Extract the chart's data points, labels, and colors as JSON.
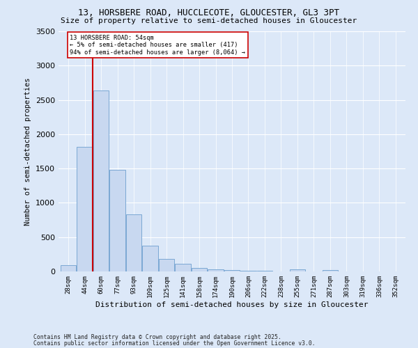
{
  "title1": "13, HORSBERE ROAD, HUCCLECOTE, GLOUCESTER, GL3 3PT",
  "title2": "Size of property relative to semi-detached houses in Gloucester",
  "xlabel": "Distribution of semi-detached houses by size in Gloucester",
  "ylabel": "Number of semi-detached properties",
  "bin_labels": [
    "28sqm",
    "44sqm",
    "60sqm",
    "77sqm",
    "93sqm",
    "109sqm",
    "125sqm",
    "141sqm",
    "158sqm",
    "174sqm",
    "190sqm",
    "206sqm",
    "222sqm",
    "238sqm",
    "255sqm",
    "271sqm",
    "287sqm",
    "303sqm",
    "319sqm",
    "336sqm",
    "352sqm"
  ],
  "bar_values": [
    95,
    1820,
    2640,
    1480,
    835,
    375,
    185,
    115,
    55,
    35,
    20,
    10,
    8,
    5,
    30,
    5,
    25,
    5,
    0,
    5,
    0
  ],
  "bar_color": "#c8d8f0",
  "bar_edge_color": "#7ba8d4",
  "annotation_line1": "13 HORSBERE ROAD: 54sqm",
  "annotation_line2": "← 5% of semi-detached houses are smaller (417)",
  "annotation_line3": "94% of semi-detached houses are larger (8,064) →",
  "red_line_color": "#cc0000",
  "annotation_box_color": "#ffffff",
  "annotation_box_edge": "#cc0000",
  "fig_background_color": "#dce8f8",
  "ax_background_color": "#dce8f8",
  "footer1": "Contains HM Land Registry data © Crown copyright and database right 2025.",
  "footer2": "Contains public sector information licensed under the Open Government Licence v3.0.",
  "ylim": [
    0,
    3500
  ],
  "yticks": [
    0,
    500,
    1000,
    1500,
    2000,
    2500,
    3000,
    3500
  ]
}
